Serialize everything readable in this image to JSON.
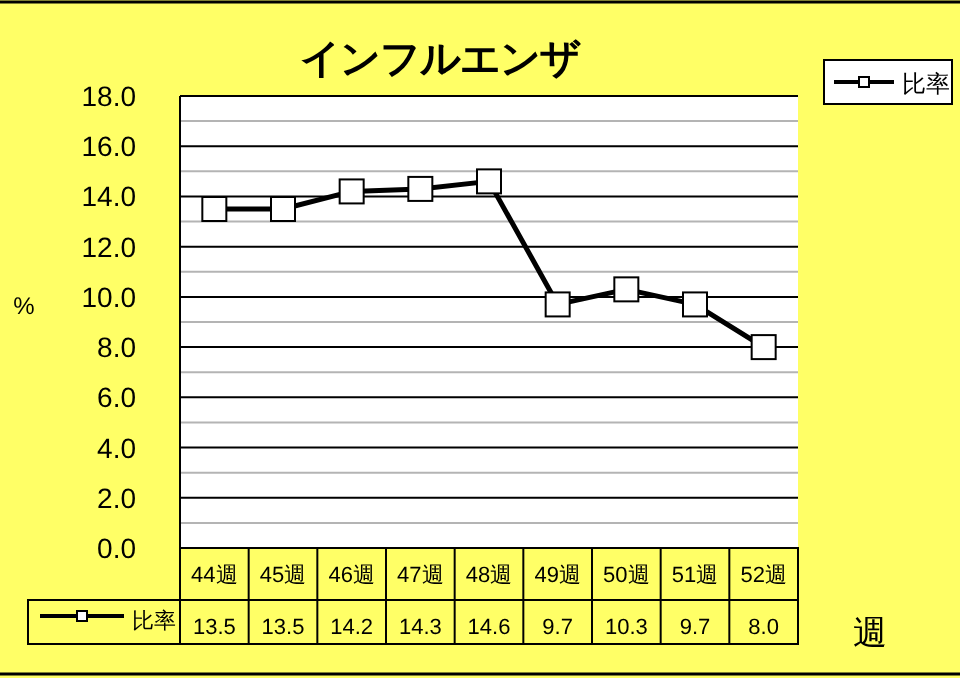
{
  "chart_data": {
    "type": "line",
    "title": "インフルエンザ",
    "xlabel": "週",
    "ylabel": "%",
    "categories": [
      "44週",
      "45週",
      "46週",
      "47週",
      "48週",
      "49週",
      "50週",
      "51週",
      "52週"
    ],
    "series": [
      {
        "name": "比率",
        "color": "#000000",
        "values": [
          13.5,
          13.5,
          14.2,
          14.3,
          14.6,
          9.7,
          10.3,
          9.7,
          8.0
        ],
        "value_labels": [
          "13.5",
          "13.5",
          "14.2",
          "14.3",
          "14.6",
          "9.7",
          "10.3",
          "9.7",
          "8.0"
        ]
      }
    ],
    "ylim": [
      0,
      18
    ],
    "yticks": [
      {
        "value": 0,
        "label": "0.0"
      },
      {
        "value": 2,
        "label": "2.0"
      },
      {
        "value": 4,
        "label": "4.0"
      },
      {
        "value": 6,
        "label": "6.0"
      },
      {
        "value": 8,
        "label": "8.0"
      },
      {
        "value": 10,
        "label": "10.0"
      },
      {
        "value": 12,
        "label": "12.0"
      },
      {
        "value": 14,
        "label": "14.0"
      },
      {
        "value": 16,
        "label": "16.0"
      },
      {
        "value": 18,
        "label": "18.0"
      }
    ],
    "grid": "y",
    "legend": "top right",
    "marker": "square",
    "line_style": "solid"
  }
}
